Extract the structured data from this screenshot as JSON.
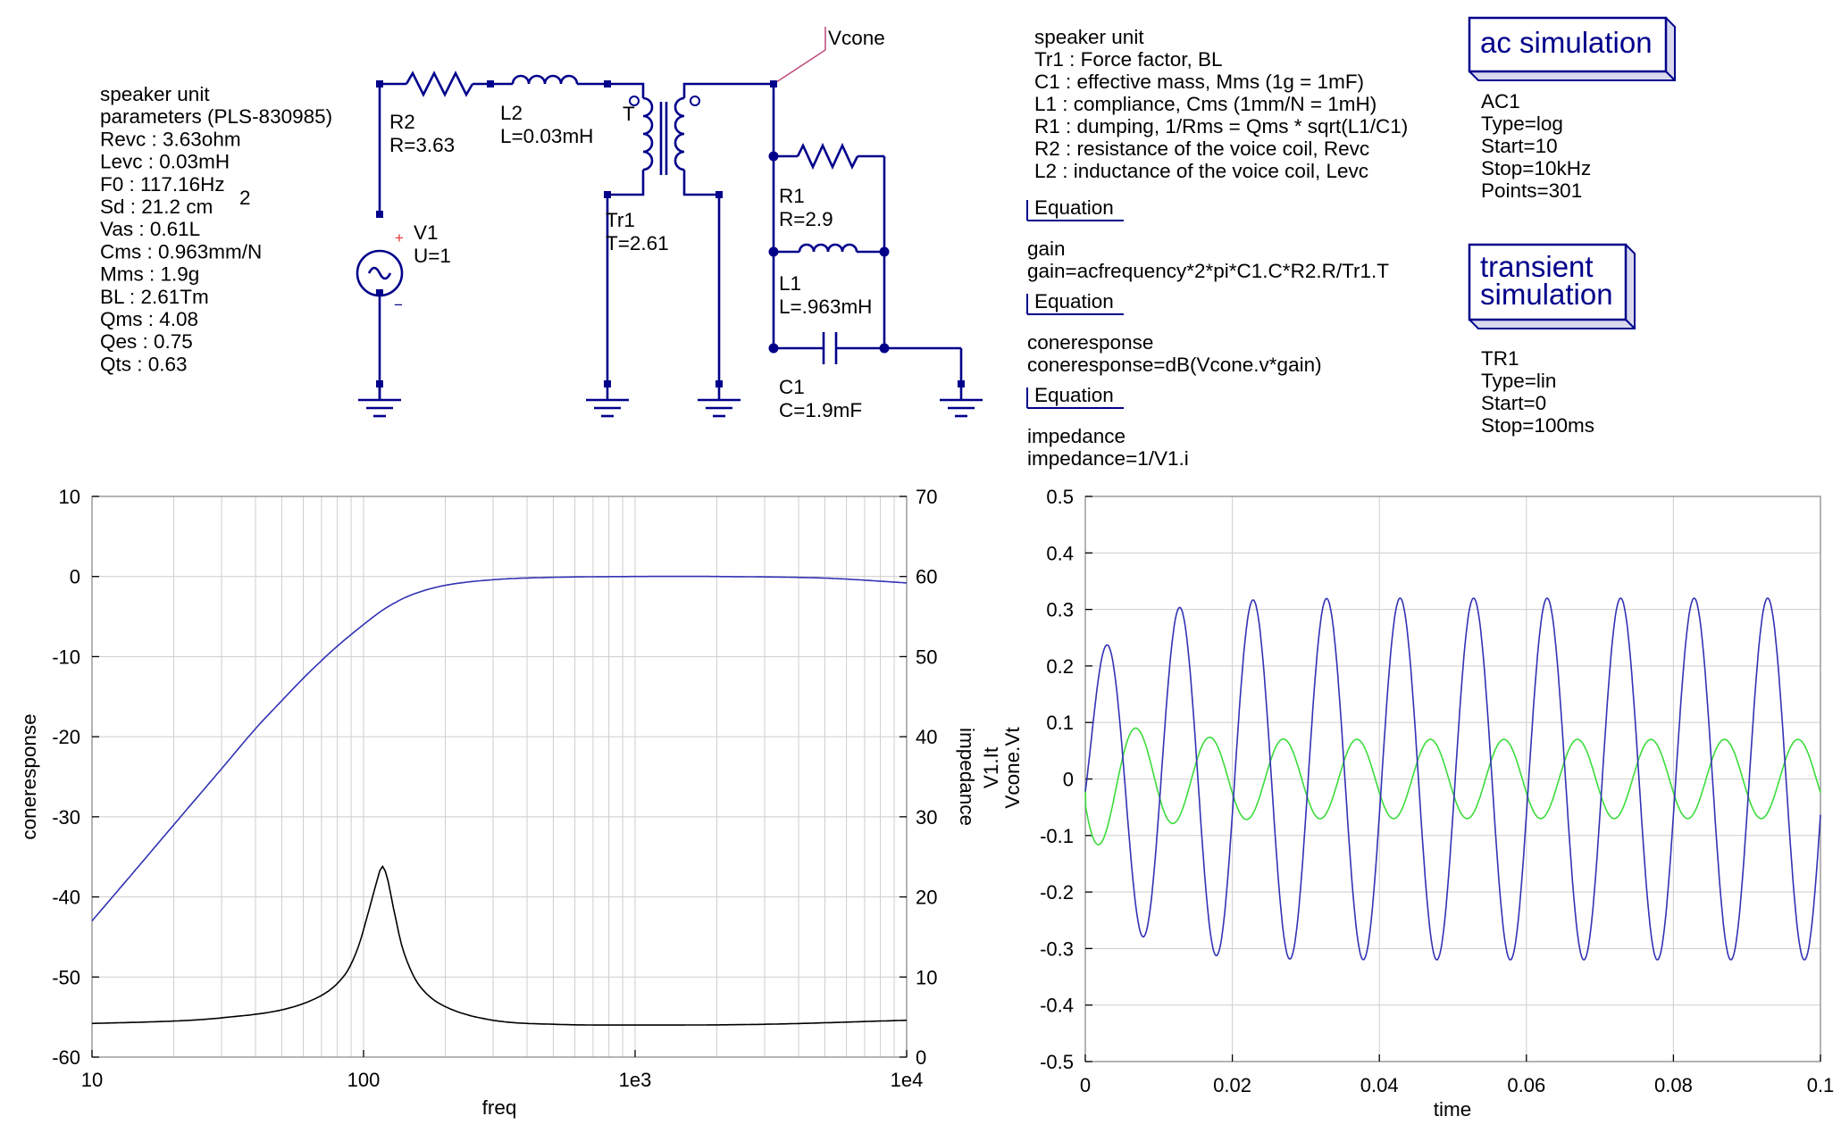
{
  "speaker_params": [
    "speaker unit",
    "parameters (PLS-830985)",
    "Revc : 3.63ohm",
    "Levc : 0.03mH",
    "F0 : 117.16Hz",
    "Sd : 21.2 cm",
    "Vas : 0.61L",
    "Cms : 0.963mm/N",
    "Mms : 1.9g",
    "BL : 2.61Tm",
    "Qms : 4.08",
    "Qes : 0.75",
    "Qts : 0.63"
  ],
  "sd_superscript": "2",
  "components": {
    "r2_name": "R2",
    "r2_value": "R=3.63",
    "l2_name": "L2",
    "l2_value": "L=0.03mH",
    "tr1_name": "Tr1",
    "tr1_value": "T=2.61",
    "tr1_mark": "T",
    "v1_name": "V1",
    "v1_value": "U=1",
    "r1_name": "R1",
    "r1_value": "R=2.9",
    "l1_name": "L1",
    "l1_value": "L=.963mH",
    "c1_name": "C1",
    "c1_value": "C=1.9mF",
    "vcone_label": "Vcone",
    "plus": "+",
    "minus": "−"
  },
  "notes": [
    "speaker unit",
    "Tr1 : Force factor, BL",
    "C1 : effective mass, Mms (1g = 1mF)",
    "L1 : compliance, Cms (1mm/N = 1mH)",
    "R1 : dumping, 1/Rms = Qms * sqrt(L1/C1)",
    "R2 : resistance of the voice coil, Revc",
    "L2 : inductance of the voice coil, Levc"
  ],
  "equations": [
    {
      "header": "Equation",
      "name": "gain",
      "expr": "gain=acfrequency*2*pi*C1.C*R2.R/Tr1.T"
    },
    {
      "header": "Equation",
      "name": "coneresponse",
      "expr": "coneresponse=dB(Vcone.v*gain)"
    },
    {
      "header": "Equation",
      "name": "impedance",
      "expr": "impedance=1/V1.i"
    }
  ],
  "ac_sim": {
    "title": "ac simulation",
    "lines": [
      "AC1",
      "Type=log",
      "Start=10",
      "Stop=10kHz",
      "Points=301"
    ]
  },
  "tr_sim": {
    "title_line1": "transient",
    "title_line2": "simulation",
    "lines": [
      "TR1",
      "Type=lin",
      "Start=0",
      "Stop=100ms"
    ]
  },
  "colors": {
    "wire": "#00008b",
    "blue_trace": "#3232b4",
    "green_trace": "#3cdc3c",
    "black_trace": "#000000",
    "grid": "#d2d2d2"
  },
  "chart_data": [
    {
      "type": "line",
      "x_scale": "log",
      "xlim": [
        10,
        10000
      ],
      "x_ticks": [
        "10",
        "100",
        "1e3",
        "1e4"
      ],
      "xlabel": "freq",
      "ylabel": "coneresponse",
      "ylim": [
        -60,
        10
      ],
      "y_ticks": [
        "10",
        "0",
        "-10",
        "-20",
        "-30",
        "-40",
        "-50",
        "-60"
      ],
      "y2label": "impedance",
      "y2lim": [
        0,
        70
      ],
      "y2_ticks": [
        "70",
        "60",
        "50",
        "40",
        "30",
        "20",
        "10",
        "0"
      ],
      "grid": true,
      "series": [
        {
          "name": "coneresponse",
          "axis": "left",
          "color": "#3232b4",
          "x": [
            10,
            15,
            20,
            30,
            40,
            50,
            60,
            70,
            80,
            100,
            120,
            150,
            200,
            300,
            500,
            1000,
            2000,
            5000,
            10000
          ],
          "y": [
            -43,
            -36,
            -31,
            -24,
            -19,
            -15.5,
            -12.7,
            -10.5,
            -8.7,
            -6,
            -4,
            -2.3,
            -1.1,
            -0.4,
            -0.1,
            0,
            0,
            -0.2,
            -0.8
          ]
        },
        {
          "name": "impedance",
          "axis": "right",
          "color": "#000000",
          "x": [
            10,
            20,
            30,
            50,
            70,
            85,
            95,
            105,
            112,
            117,
            122,
            130,
            140,
            160,
            200,
            300,
            500,
            1000,
            3000,
            10000
          ],
          "y": [
            4.2,
            4.5,
            4.9,
            5.9,
            7.7,
            10.2,
            13.5,
            18.5,
            22,
            23.8,
            22.5,
            18,
            13.3,
            9,
            6.3,
            4.6,
            4.1,
            4,
            4.1,
            4.6
          ]
        }
      ]
    },
    {
      "type": "line",
      "xlim": [
        0,
        0.1
      ],
      "x_ticks": [
        "0",
        "0.02",
        "0.04",
        "0.06",
        "0.08",
        "0.1"
      ],
      "xlabel": "time",
      "ylim": [
        -0.5,
        0.5
      ],
      "y_ticks": [
        "0.5",
        "0.4",
        "0.3",
        "0.2",
        "0.1",
        "0",
        "-0.1",
        "-0.2",
        "-0.3",
        "-0.4",
        "-0.5"
      ],
      "grid": true,
      "y_labels": [
        {
          "text": "V1.It",
          "color": "#3cdc3c"
        },
        {
          "text": "Vcone.Vt",
          "color": "#3232b4"
        }
      ],
      "series": [
        {
          "name": "Vcone.Vt",
          "color": "#3232b4",
          "frequency_hz": 100,
          "amplitude": 0.32,
          "first_peak": 0.2
        },
        {
          "name": "V1.It",
          "color": "#3cdc3c",
          "frequency_hz": 100,
          "amplitude": 0.07,
          "first_trough": -0.135
        }
      ]
    }
  ]
}
